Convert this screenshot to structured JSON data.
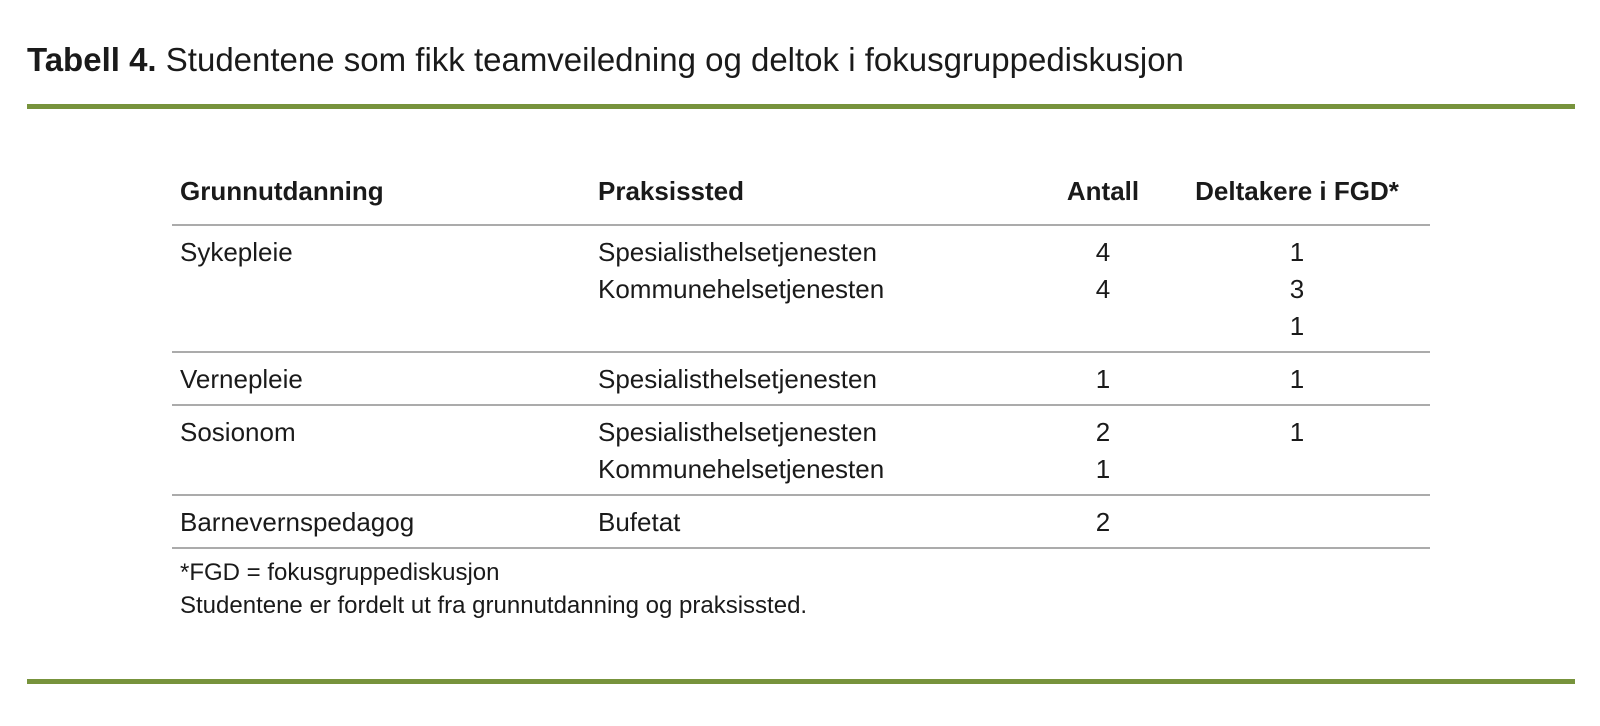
{
  "caption": {
    "label": "Tabell 4.",
    "text": "Studentene som fikk teamveiledning og deltok i fokusgruppediskusjon"
  },
  "colors": {
    "accent_green": "#77933C",
    "table_line_gray": "#ABABAB",
    "text": "#1A1A1A",
    "background": "#FFFFFF"
  },
  "table": {
    "columns": [
      "Grunnutdanning",
      "Praksissted",
      "Antall",
      "Deltakere i FGD*"
    ],
    "groups": [
      {
        "rows": [
          {
            "grunnutdanning": "Sykepleie",
            "praksissted": "Spesialisthelsetjenesten",
            "antall": "4",
            "deltakere": "1"
          },
          {
            "grunnutdanning": "",
            "praksissted": "Kommunehelsetjenesten",
            "antall": "4",
            "deltakere": "3"
          },
          {
            "grunnutdanning": "",
            "praksissted": "",
            "antall": "",
            "deltakere": "1"
          }
        ]
      },
      {
        "rows": [
          {
            "grunnutdanning": "Vernepleie",
            "praksissted": "Spesialisthelsetjenesten",
            "antall": "1",
            "deltakere": "1"
          }
        ]
      },
      {
        "rows": [
          {
            "grunnutdanning": "Sosionom",
            "praksissted": "Spesialisthelsetjenesten",
            "antall": "2",
            "deltakere": "1"
          },
          {
            "grunnutdanning": "",
            "praksissted": "Kommunehelsetjenesten",
            "antall": "1",
            "deltakere": ""
          }
        ]
      },
      {
        "rows": [
          {
            "grunnutdanning": "Barnevernspedagog",
            "praksissted": "Bufetat",
            "antall": "2",
            "deltakere": ""
          }
        ]
      }
    ]
  },
  "footnotes": [
    "*FGD = fokusgruppediskusjon",
    "Studentene er fordelt ut fra grunnutdanning og praksissted."
  ]
}
